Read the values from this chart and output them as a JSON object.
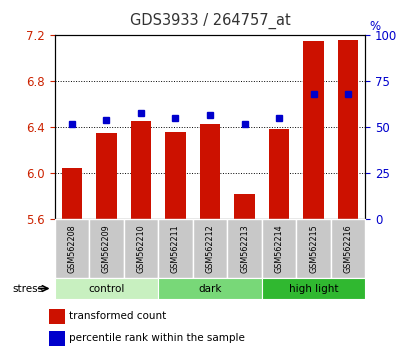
{
  "title": "GDS3933 / 264757_at",
  "samples": [
    "GSM562208",
    "GSM562209",
    "GSM562210",
    "GSM562211",
    "GSM562212",
    "GSM562213",
    "GSM562214",
    "GSM562215",
    "GSM562216"
  ],
  "red_values": [
    6.05,
    6.35,
    6.46,
    6.36,
    6.43,
    5.82,
    6.39,
    7.15,
    7.16
  ],
  "blue_values": [
    52,
    54,
    58,
    55,
    57,
    52,
    55,
    68,
    68
  ],
  "ylim_left": [
    5.6,
    7.2
  ],
  "ylim_right": [
    0,
    100
  ],
  "yticks_left": [
    5.6,
    6.0,
    6.4,
    6.8,
    7.2
  ],
  "yticks_right": [
    0,
    25,
    50,
    75,
    100
  ],
  "groups": [
    {
      "label": "control",
      "start": 0,
      "end": 2,
      "color": "#c8f0c0"
    },
    {
      "label": "dark",
      "start": 3,
      "end": 5,
      "color": "#78d878"
    },
    {
      "label": "high light",
      "start": 6,
      "end": 8,
      "color": "#30b830"
    }
  ],
  "stress_label": "stress",
  "bar_color": "#cc1100",
  "dot_color": "#0000cc",
  "bar_width": 0.6,
  "legend_items": [
    {
      "color": "#cc1100",
      "label": "transformed count"
    },
    {
      "color": "#0000cc",
      "label": "percentile rank within the sample"
    }
  ],
  "bg_color": "#ffffff",
  "tick_label_color_left": "#cc2200",
  "tick_label_color_right": "#0000cc",
  "title_color": "#333333",
  "cell_color": "#c8c8c8",
  "cell_edge_color": "#ffffff"
}
